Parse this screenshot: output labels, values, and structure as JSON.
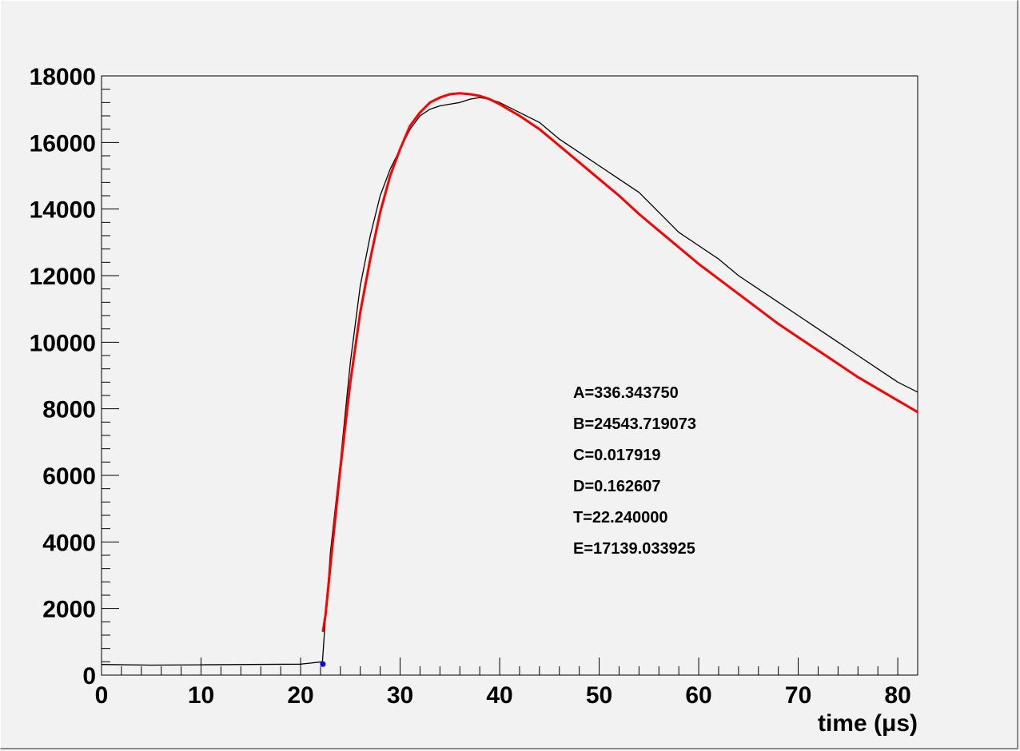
{
  "chart_data": {
    "type": "line",
    "xlabel": "time (μs)",
    "ylabel": "",
    "xlim": [
      0,
      82
    ],
    "ylim": [
      0,
      18000
    ],
    "x_ticks": [
      0,
      10,
      20,
      30,
      40,
      50,
      60,
      70,
      80
    ],
    "x_tick_labels": [
      "0",
      "10",
      "20",
      "30",
      "40",
      "50",
      "60",
      "70",
      "80"
    ],
    "y_ticks": [
      0,
      2000,
      4000,
      6000,
      8000,
      10000,
      12000,
      14000,
      16000,
      18000
    ],
    "y_tick_labels": [
      "0",
      "2000",
      "4000",
      "6000",
      "8000",
      "10000",
      "12000",
      "14000",
      "16000",
      "18000"
    ],
    "grid": false,
    "series": [
      {
        "color": "#000000",
        "x": [
          0,
          5,
          10,
          15,
          20,
          22.2,
          22.4,
          23,
          24,
          25,
          26,
          27,
          28,
          29,
          30,
          31,
          32,
          33,
          34,
          35,
          36,
          37,
          38,
          39,
          40,
          42,
          44,
          46,
          48,
          50,
          52,
          54,
          56,
          58,
          60,
          62,
          64,
          66,
          68,
          70,
          72,
          74,
          76,
          78,
          80,
          82
        ],
        "y": [
          320,
          300,
          310,
          320,
          330,
          400,
          1300,
          3700,
          6400,
          9400,
          11700,
          13200,
          14400,
          15200,
          15800,
          16400,
          16800,
          17000,
          17100,
          17150,
          17200,
          17300,
          17350,
          17300,
          17200,
          16900,
          16600,
          16100,
          15700,
          15300,
          14900,
          14500,
          13900,
          13300,
          12900,
          12500,
          12000,
          11600,
          11200,
          10800,
          10400,
          10000,
          9600,
          9200,
          8800,
          8500
        ]
      },
      {
        "color": "#ff0000",
        "x": [
          22.24,
          22.5,
          23,
          24,
          25,
          26,
          27,
          28,
          29,
          30,
          31,
          32,
          33,
          34,
          35,
          36,
          37,
          38,
          39,
          40,
          42,
          44,
          46,
          48,
          50,
          52,
          54,
          56,
          58,
          60,
          62,
          64,
          66,
          68,
          70,
          72,
          74,
          76,
          78,
          80,
          82
        ],
        "y": [
          1300,
          1800,
          3300,
          6200,
          8800,
          10900,
          12500,
          13900,
          15000,
          15800,
          16500,
          16900,
          17200,
          17350,
          17450,
          17480,
          17450,
          17400,
          17300,
          17150,
          16800,
          16400,
          15900,
          15400,
          14900,
          14400,
          13850,
          13350,
          12850,
          12350,
          11900,
          11450,
          11000,
          10550,
          10150,
          9750,
          9350,
          8950,
          8600,
          8250,
          7900
        ]
      }
    ],
    "marker": {
      "x": 22.24,
      "y": 330,
      "color": "#0000ff"
    },
    "annotations": [
      "A=336.343750",
      "B=24543.719073",
      "C=0.017919",
      "D=0.162607",
      "T=22.240000",
      "E=17139.033925"
    ]
  }
}
